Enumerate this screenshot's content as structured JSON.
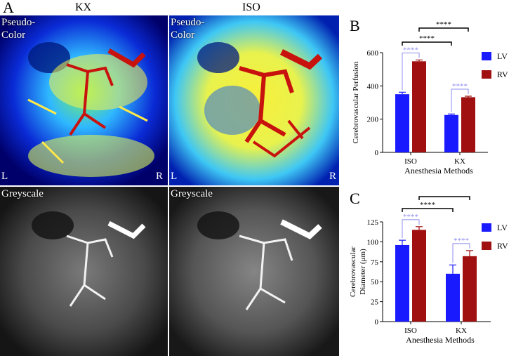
{
  "panels": {
    "a_letter": "A",
    "b_letter": "B",
    "c_letter": "C"
  },
  "columns": {
    "left": "KX",
    "right": "ISO"
  },
  "tiles": {
    "pseudo_label": "Pseudo-\nColor",
    "grey_label": "Greyscale",
    "left_side": "L",
    "right_side": "R"
  },
  "chart_data": [
    {
      "type": "bar",
      "panel": "B",
      "categories": [
        "ISO",
        "KX"
      ],
      "series": [
        {
          "name": "LV",
          "color": "#1a1aff",
          "values": [
            350,
            225
          ],
          "errors": [
            12,
            6
          ]
        },
        {
          "name": "RV",
          "color": "#a01010",
          "values": [
            548,
            332
          ],
          "errors": [
            8,
            6
          ]
        }
      ],
      "xlabel": "Anesthesia Methods",
      "ylabel": "Cerebrovascular Perfusion",
      "ylim": [
        0,
        600
      ],
      "yticks": [
        0,
        200,
        400,
        600
      ],
      "legend": "right",
      "significance": [
        "****",
        "****",
        "****",
        "****"
      ]
    },
    {
      "type": "bar",
      "panel": "C",
      "categories": [
        "ISO",
        "KX"
      ],
      "series": [
        {
          "name": "LV",
          "color": "#1a1aff",
          "values": [
            96,
            60
          ],
          "errors": [
            6,
            11
          ]
        },
        {
          "name": "RV",
          "color": "#a01010",
          "values": [
            115,
            82
          ],
          "errors": [
            4,
            7
          ]
        }
      ],
      "xlabel": "Anesthesia Methods",
      "ylabel": "Cerebrovascular\nDiameter (μm)",
      "ylabel_lines": [
        "Cerebrovascular",
        "Diameter (μm)"
      ],
      "ylim": [
        0,
        125
      ],
      "yticks": [
        0,
        25,
        50,
        75,
        100,
        125
      ],
      "legend": "right",
      "significance": [
        "****",
        "****",
        "****",
        "****"
      ]
    }
  ]
}
